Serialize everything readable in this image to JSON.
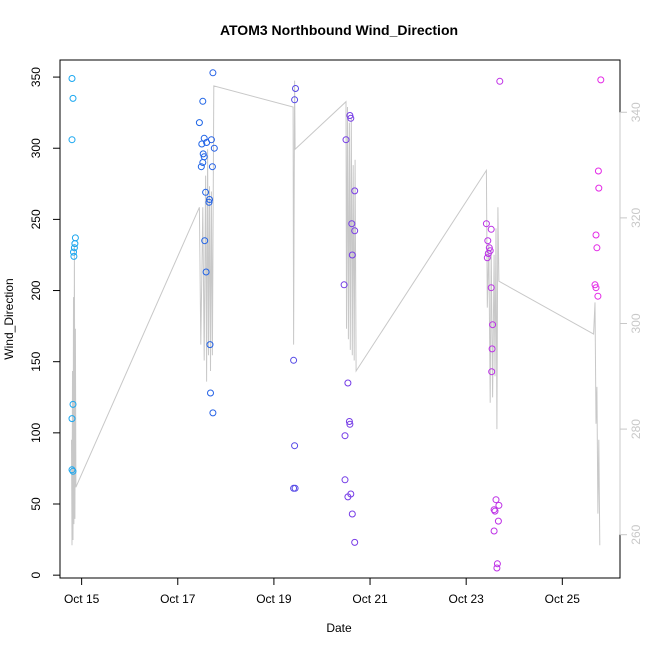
{
  "chart_data": {
    "type": "scatter",
    "title": "ATOM3 Northbound Wind_Direction",
    "xlabel": "Date",
    "ylabel": "Wind_Direction",
    "xlim": [
      14.55,
      26.2
    ],
    "ylim": [
      -2,
      362
    ],
    "y2lim": [
      251.8,
      349.9
    ],
    "x_ticks": [
      15,
      17,
      19,
      21,
      23,
      25
    ],
    "x_tick_labels": [
      "Oct 15",
      "Oct 17",
      "Oct 19",
      "Oct 21",
      "Oct 23",
      "Oct 25"
    ],
    "y_ticks": [
      0,
      50,
      100,
      150,
      200,
      250,
      300,
      350
    ],
    "y_tick_labels": [
      "0",
      "50",
      "100",
      "150",
      "200",
      "250",
      "300",
      "350"
    ],
    "y2_ticks": [
      260,
      280,
      300,
      320,
      340
    ],
    "y2_tick_labels": [
      "260",
      "280",
      "300",
      "320",
      "340"
    ],
    "colors": {
      "line": "#c8c8c8",
      "right_axis": "#c8c8c8",
      "axis": "#000000",
      "point_gradient": [
        "#1aaaf0",
        "#1e64e6",
        "#6e3ce6",
        "#b432e6",
        "#e628e6"
      ]
    },
    "points": [
      {
        "x": 14.8,
        "y": 349
      },
      {
        "x": 14.82,
        "y": 335
      },
      {
        "x": 14.8,
        "y": 306
      },
      {
        "x": 14.87,
        "y": 237
      },
      {
        "x": 14.86,
        "y": 233
      },
      {
        "x": 14.85,
        "y": 230
      },
      {
        "x": 14.83,
        "y": 227
      },
      {
        "x": 14.84,
        "y": 224
      },
      {
        "x": 14.82,
        "y": 120
      },
      {
        "x": 14.8,
        "y": 110
      },
      {
        "x": 14.8,
        "y": 74
      },
      {
        "x": 14.82,
        "y": 73
      },
      {
        "x": 17.73,
        "y": 353
      },
      {
        "x": 17.52,
        "y": 333
      },
      {
        "x": 17.45,
        "y": 318
      },
      {
        "x": 17.55,
        "y": 307
      },
      {
        "x": 17.5,
        "y": 303
      },
      {
        "x": 17.6,
        "y": 304
      },
      {
        "x": 17.7,
        "y": 306
      },
      {
        "x": 17.76,
        "y": 300
      },
      {
        "x": 17.53,
        "y": 296
      },
      {
        "x": 17.55,
        "y": 294
      },
      {
        "x": 17.52,
        "y": 290
      },
      {
        "x": 17.49,
        "y": 287
      },
      {
        "x": 17.72,
        "y": 287
      },
      {
        "x": 17.58,
        "y": 269
      },
      {
        "x": 17.66,
        "y": 264
      },
      {
        "x": 17.65,
        "y": 262
      },
      {
        "x": 17.56,
        "y": 235
      },
      {
        "x": 17.59,
        "y": 213
      },
      {
        "x": 17.67,
        "y": 162
      },
      {
        "x": 17.68,
        "y": 128
      },
      {
        "x": 17.73,
        "y": 114
      },
      {
        "x": 19.45,
        "y": 342
      },
      {
        "x": 19.43,
        "y": 334
      },
      {
        "x": 19.41,
        "y": 151
      },
      {
        "x": 19.43,
        "y": 91
      },
      {
        "x": 19.44,
        "y": 61
      },
      {
        "x": 19.41,
        "y": 61
      },
      {
        "x": 20.5,
        "y": 306
      },
      {
        "x": 20.58,
        "y": 323
      },
      {
        "x": 20.6,
        "y": 321
      },
      {
        "x": 20.68,
        "y": 270
      },
      {
        "x": 20.62,
        "y": 247
      },
      {
        "x": 20.68,
        "y": 242
      },
      {
        "x": 20.63,
        "y": 225
      },
      {
        "x": 20.46,
        "y": 204
      },
      {
        "x": 20.54,
        "y": 135
      },
      {
        "x": 20.57,
        "y": 108
      },
      {
        "x": 20.58,
        "y": 106
      },
      {
        "x": 20.48,
        "y": 98
      },
      {
        "x": 20.48,
        "y": 67
      },
      {
        "x": 20.6,
        "y": 57
      },
      {
        "x": 20.54,
        "y": 55
      },
      {
        "x": 20.63,
        "y": 43
      },
      {
        "x": 20.68,
        "y": 23
      },
      {
        "x": 23.7,
        "y": 347
      },
      {
        "x": 23.42,
        "y": 247
      },
      {
        "x": 23.52,
        "y": 243
      },
      {
        "x": 23.45,
        "y": 235
      },
      {
        "x": 23.48,
        "y": 230
      },
      {
        "x": 23.5,
        "y": 228
      },
      {
        "x": 23.46,
        "y": 226
      },
      {
        "x": 23.44,
        "y": 223
      },
      {
        "x": 23.52,
        "y": 202
      },
      {
        "x": 23.55,
        "y": 176
      },
      {
        "x": 23.54,
        "y": 159
      },
      {
        "x": 23.53,
        "y": 143
      },
      {
        "x": 23.62,
        "y": 53
      },
      {
        "x": 23.68,
        "y": 49
      },
      {
        "x": 23.58,
        "y": 46
      },
      {
        "x": 23.6,
        "y": 45
      },
      {
        "x": 23.67,
        "y": 38
      },
      {
        "x": 23.58,
        "y": 31
      },
      {
        "x": 23.65,
        "y": 8
      },
      {
        "x": 23.64,
        "y": 5
      },
      {
        "x": 25.8,
        "y": 348
      },
      {
        "x": 25.75,
        "y": 284
      },
      {
        "x": 25.76,
        "y": 272
      },
      {
        "x": 25.7,
        "y": 239
      },
      {
        "x": 25.72,
        "y": 230
      },
      {
        "x": 25.68,
        "y": 204
      },
      {
        "x": 25.7,
        "y": 202
      },
      {
        "x": 25.74,
        "y": 196
      }
    ],
    "line_series": {
      "axis": "right",
      "points": [
        {
          "x": 14.79,
          "y": 278
        },
        {
          "x": 14.8,
          "y": 258
        },
        {
          "x": 14.81,
          "y": 291
        },
        {
          "x": 14.82,
          "y": 259
        },
        {
          "x": 14.83,
          "y": 305
        },
        {
          "x": 14.84,
          "y": 262
        },
        {
          "x": 14.85,
          "y": 315
        },
        {
          "x": 14.86,
          "y": 263
        },
        {
          "x": 14.87,
          "y": 299
        },
        {
          "x": 14.88,
          "y": 269
        },
        {
          "x": 17.45,
          "y": 322
        },
        {
          "x": 17.48,
          "y": 296
        },
        {
          "x": 17.52,
          "y": 322
        },
        {
          "x": 17.55,
          "y": 293
        },
        {
          "x": 17.58,
          "y": 328
        },
        {
          "x": 17.6,
          "y": 289
        },
        {
          "x": 17.62,
          "y": 333
        },
        {
          "x": 17.64,
          "y": 294
        },
        {
          "x": 17.66,
          "y": 326
        },
        {
          "x": 17.68,
          "y": 291
        },
        {
          "x": 17.7,
          "y": 325
        },
        {
          "x": 17.72,
          "y": 294
        },
        {
          "x": 17.75,
          "y": 345
        },
        {
          "x": 19.4,
          "y": 341
        },
        {
          "x": 19.41,
          "y": 296
        },
        {
          "x": 19.43,
          "y": 346
        },
        {
          "x": 19.44,
          "y": 333
        },
        {
          "x": 20.5,
          "y": 342
        },
        {
          "x": 20.51,
          "y": 299
        },
        {
          "x": 20.53,
          "y": 341
        },
        {
          "x": 20.55,
          "y": 297
        },
        {
          "x": 20.57,
          "y": 338
        },
        {
          "x": 20.59,
          "y": 295
        },
        {
          "x": 20.61,
          "y": 339
        },
        {
          "x": 20.63,
          "y": 294
        },
        {
          "x": 20.65,
          "y": 330
        },
        {
          "x": 20.67,
          "y": 293
        },
        {
          "x": 20.69,
          "y": 331
        },
        {
          "x": 20.71,
          "y": 291
        },
        {
          "x": 23.42,
          "y": 329
        },
        {
          "x": 23.44,
          "y": 303
        },
        {
          "x": 23.47,
          "y": 315
        },
        {
          "x": 23.5,
          "y": 285
        },
        {
          "x": 23.52,
          "y": 314
        },
        {
          "x": 23.55,
          "y": 286
        },
        {
          "x": 23.58,
          "y": 313
        },
        {
          "x": 23.6,
          "y": 290
        },
        {
          "x": 23.62,
          "y": 318
        },
        {
          "x": 23.64,
          "y": 280
        },
        {
          "x": 23.66,
          "y": 322
        },
        {
          "x": 23.68,
          "y": 308
        },
        {
          "x": 25.65,
          "y": 298
        },
        {
          "x": 25.68,
          "y": 304
        },
        {
          "x": 25.7,
          "y": 281
        },
        {
          "x": 25.72,
          "y": 288
        },
        {
          "x": 25.74,
          "y": 264
        },
        {
          "x": 25.76,
          "y": 278
        },
        {
          "x": 25.78,
          "y": 258
        }
      ]
    }
  }
}
